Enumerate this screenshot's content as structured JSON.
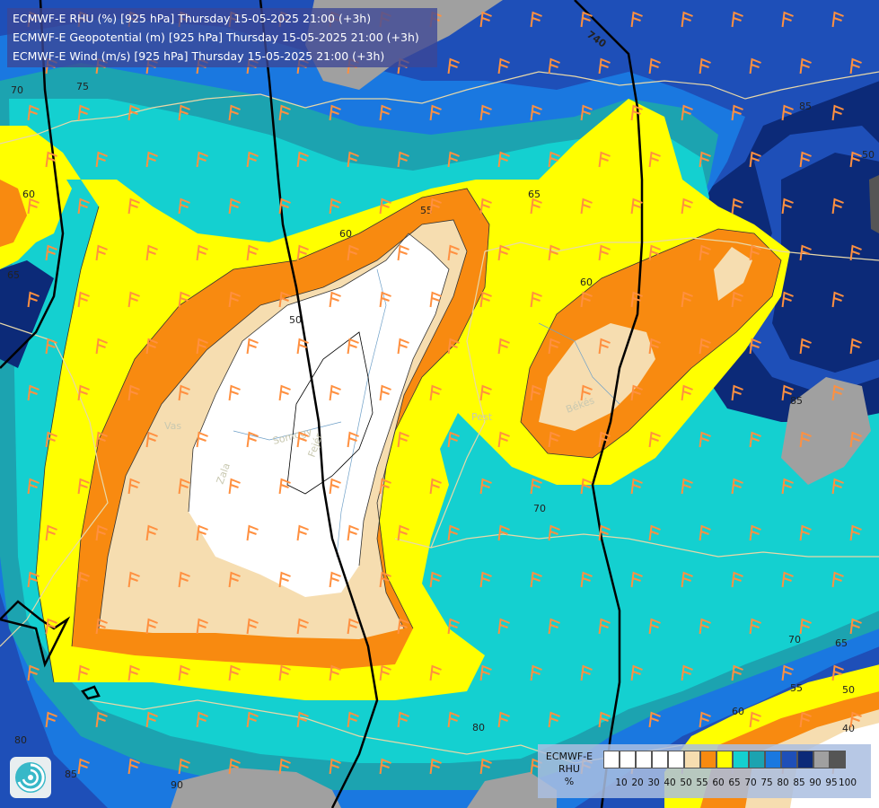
{
  "title": {
    "line1": "ECMWF-E RHU (%) [925 hPa] Thursday 15-05-2025 21:00 (+3h)",
    "line2": "ECMWF-E Geopotential (m) [925 hPa] Thursday 15-05-2025 21:00 (+3h)",
    "line3": "ECMWF-E Wind (m/s) [925 hPa] Thursday 15-05-2025 21:00 (+3h)"
  },
  "legend": {
    "name_line1": "ECMWF-E",
    "name_line2": "RHU",
    "unit": "%",
    "levels": [
      "10",
      "20",
      "30",
      "40",
      "50",
      "55",
      "60",
      "65",
      "70",
      "75",
      "80",
      "85",
      "90",
      "95",
      "100"
    ],
    "colors": [
      "#ffffff",
      "#ffffff",
      "#ffffff",
      "#ffffff",
      "#ffffff",
      "#f6ddb0",
      "#f88a10",
      "#ffff00",
      "#14d0d0",
      "#1ca3b0",
      "#1a78e0",
      "#1e4fb8",
      "#0c2a78",
      "#a0a0a0",
      "#555555"
    ]
  },
  "isolines": {
    "rhu_labels": [
      "70",
      "75",
      "60",
      "65",
      "55",
      "60",
      "50",
      "65",
      "60",
      "70",
      "80",
      "85",
      "85",
      "70",
      "65",
      "55",
      "50",
      "40",
      "60",
      "80",
      "85",
      "90",
      "50"
    ],
    "geopotential_label": "740"
  },
  "places": [
    "Vas",
    "Zala",
    "Somogy",
    "Fejér",
    "Pest",
    "Békés"
  ],
  "colors": {
    "white": "#ffffff",
    "cream": "#f6ddb0",
    "orange": "#f88a10",
    "yellow": "#ffff00",
    "cyan": "#14d0d0",
    "teal": "#1ca3b0",
    "blue": "#1a78e0",
    "mid_blue": "#1e4fb8",
    "navy": "#0c2a78",
    "gray": "#a0a0a0"
  },
  "logo": "ecmwf-swirl-icon"
}
